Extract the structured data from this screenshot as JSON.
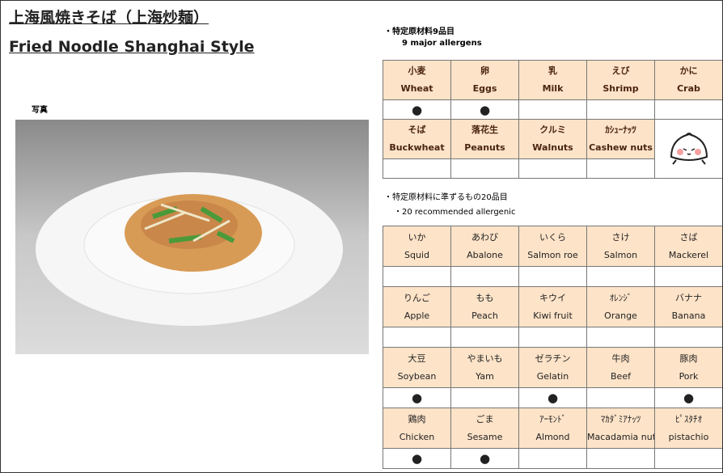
{
  "title_jp": "上海風焼きそば（上海炒麺）",
  "title_en": "Fried Noodle Shanghai Style",
  "photo_label": "写真",
  "major": {
    "heading": "・特定原材料9品目",
    "subheading": "9 major allergens",
    "groups": [
      [
        {
          "jp": "小麦",
          "en": "Wheat",
          "mark": "●"
        },
        {
          "jp": "卵",
          "en": "Eggs",
          "mark": "●"
        },
        {
          "jp": "乳",
          "en": "Milk"
        },
        {
          "jp": "えび",
          "en": "Shrimp"
        },
        {
          "jp": "かに",
          "en": "Crab"
        }
      ],
      [
        {
          "jp": "そば",
          "en": "Buckwheat"
        },
        {
          "jp": "落花生",
          "en": "Peanuts"
        },
        {
          "jp": "クルミ",
          "en": "Walnuts"
        },
        {
          "jp": "ｶｼｭｰﾅｯﾂ",
          "en": "Cashew nuts"
        }
      ]
    ]
  },
  "recommended": {
    "heading": "・特定原材料に準ずるもの20品目",
    "subheading": "・20 recommended allergenic",
    "groups": [
      [
        {
          "jp": "いか",
          "en": "Squid"
        },
        {
          "jp": "あわび",
          "en": "Abalone"
        },
        {
          "jp": "いくら",
          "en": "Salmon roe"
        },
        {
          "jp": "さけ",
          "en": "Salmon"
        },
        {
          "jp": "さば",
          "en": "Mackerel"
        }
      ],
      [
        {
          "jp": "りんご",
          "en": "Apple"
        },
        {
          "jp": "もも",
          "en": "Peach"
        },
        {
          "jp": "キウイ",
          "en": "Kiwi fruit"
        },
        {
          "jp": "ｵﾚﾝｼﾞ",
          "en": "Orange"
        },
        {
          "jp": "バナナ",
          "en": "Banana"
        }
      ],
      [
        {
          "jp": "大豆",
          "en": "Soybean",
          "mark": "●"
        },
        {
          "jp": "やまいも",
          "en": "Yam"
        },
        {
          "jp": "ゼラチン",
          "en": "Gelatin",
          "mark": "●"
        },
        {
          "jp": "牛肉",
          "en": "Beef"
        },
        {
          "jp": "豚肉",
          "en": "Pork",
          "mark": "●"
        }
      ],
      [
        {
          "jp": "鶏肉",
          "en": "Chicken",
          "mark": "●"
        },
        {
          "jp": "ごま",
          "en": "Sesame",
          "mark": "●"
        },
        {
          "jp": "ｱｰﾓﾝﾄﾞ",
          "en": "Almond"
        },
        {
          "jp": "ﾏｶﾀﾞﾐｱﾅｯﾂ",
          "en": "Macadamia nut"
        },
        {
          "jp": "ﾋﾟｽﾀﾁｵ",
          "en": "pistachio"
        }
      ]
    ]
  }
}
